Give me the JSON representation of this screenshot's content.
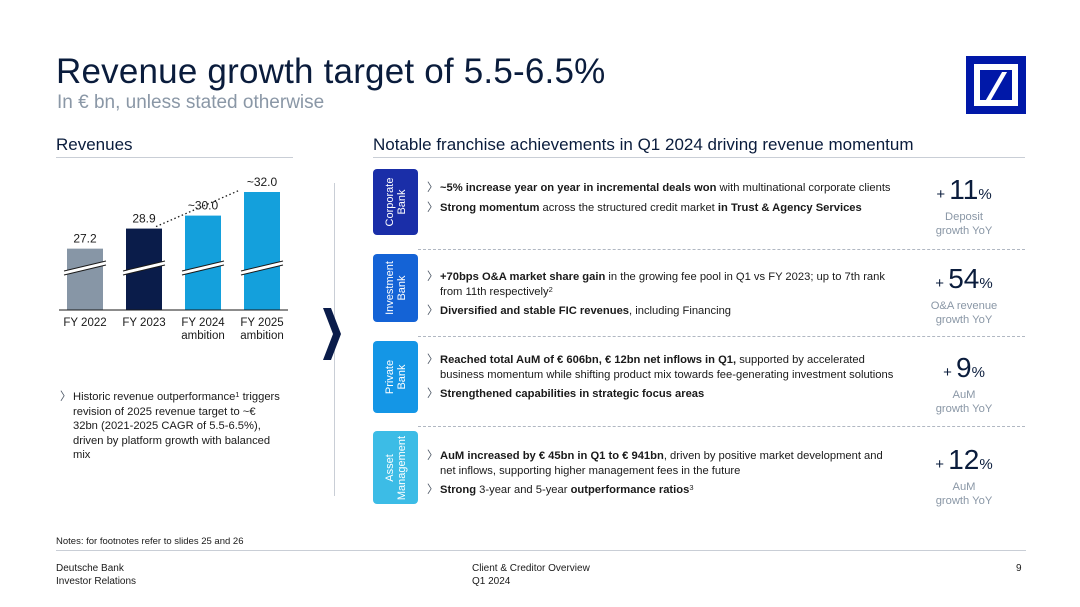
{
  "title": "Revenue growth target of 5.5-6.5%",
  "subtitle": "In € bn, unless stated otherwise",
  "left_section": {
    "heading": "Revenues",
    "bullet": "Historic revenue outperformance",
    "bullet_sup": "1",
    "bullet_rest": " triggers revision of 2025 revenue target to ~€ 32bn (2021-2025 CAGR of 5.5-6.5%), driven by platform growth with balanced mix"
  },
  "chart_data": {
    "type": "bar",
    "categories": [
      "FY 2022",
      "FY 2023",
      "FY 2024\nambition",
      "FY 2025\nambition"
    ],
    "category_lines": [
      [
        "FY 2022"
      ],
      [
        "FY 2023"
      ],
      [
        "FY 2024",
        "ambition"
      ],
      [
        "FY 2025",
        "ambition"
      ]
    ],
    "values": [
      27.2,
      28.9,
      30.0,
      32.0
    ],
    "value_labels": [
      "27.2",
      "28.9",
      "~30.0",
      "~32.0"
    ],
    "colors": [
      "#8796a6",
      "#0a1c4a",
      "#14a0dc",
      "#14a0dc"
    ],
    "axis_break": true,
    "trend_line": "dotted from FY 2023 to FY 2025",
    "ylim": [
      22,
      32
    ]
  },
  "right_section": {
    "heading": "Notable franchise achievements in Q1 2024 driving revenue momentum",
    "rows": [
      {
        "tab": [
          "Corporate",
          "Bank"
        ],
        "color": "#1a2ea8",
        "items": [
          {
            "bold": "~5% increase year on year in incremental deals won",
            "rest": " with multinational corporate clients"
          },
          {
            "bold": "Strong momentum",
            "rest": " across the structured credit  market ",
            "bold2": "in Trust & Agency Services"
          }
        ],
        "kpi_value": "11",
        "kpi_desc": [
          "Deposit",
          "growth YoY"
        ]
      },
      {
        "tab": [
          "Investment",
          "Bank"
        ],
        "color": "#1463d6",
        "items": [
          {
            "bold": "+70bps O&A market share gain",
            "rest": " in the growing fee pool in Q1 vs FY 2023; up to 7th rank from 11th respectively",
            "sup": "2"
          },
          {
            "bold": "Diversified and stable FIC revenues",
            "rest": ", including Financing"
          }
        ],
        "kpi_value": "54",
        "kpi_desc": [
          "O&A revenue",
          "growth YoY"
        ]
      },
      {
        "tab": [
          "Private",
          "Bank"
        ],
        "color": "#1496e6",
        "items": [
          {
            "bold": "Reached total AuM of € 606bn, € 12bn net inflows in Q1,",
            "rest": " supported by accelerated business momentum while shifting product mix towards fee-generating investment solutions"
          },
          {
            "bold": "Strengthened capabilities in strategic focus areas",
            "rest": ""
          }
        ],
        "kpi_value": "9",
        "kpi_desc": [
          "AuM",
          "growth YoY"
        ]
      },
      {
        "tab": [
          "Asset",
          "Management"
        ],
        "color": "#3cbce6",
        "items": [
          {
            "bold": "AuM increased by € 45bn in Q1 to € 941bn",
            "rest": ", driven by positive market development and net inflows, supporting higher management fees in the future"
          },
          {
            "bold": "Strong",
            "rest": " 3-year and 5-year ",
            "bold2": "outperformance ratios",
            "sup": "3"
          }
        ],
        "kpi_value": "12",
        "kpi_desc": [
          "AuM",
          "growth YoY"
        ]
      }
    ],
    "kpi_plus": "+",
    "kpi_unit": "%"
  },
  "notes": "Notes: for footnotes refer to slides 25 and 26",
  "footer": {
    "left": [
      "Deutsche Bank",
      "Investor Relations"
    ],
    "middle": [
      "Client & Creditor Overview",
      "Q1 2024"
    ],
    "page": "9"
  },
  "icons": {
    "logo": "deutsche-bank-logo",
    "arrow": "chevron-right-icon",
    "bullet": "chevron-bullet-icon"
  },
  "colors": {
    "navy": "#0a1c3c",
    "accent": "#0018a8",
    "grey_text": "#8a97a6"
  }
}
